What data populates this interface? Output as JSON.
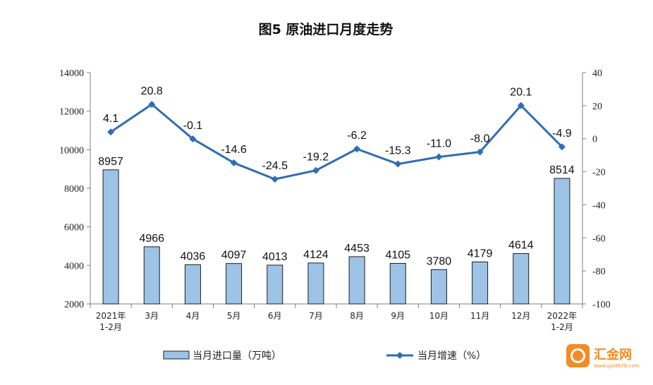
{
  "chart_data": {
    "type": "bar+line",
    "title": "图5  原油进口月度走势",
    "categories": [
      [
        "2021年",
        "1-2月"
      ],
      [
        "3月"
      ],
      [
        "4月"
      ],
      [
        "5月"
      ],
      [
        "6月"
      ],
      [
        "7月"
      ],
      [
        "8月"
      ],
      [
        "9月"
      ],
      [
        "10月"
      ],
      [
        "11月"
      ],
      [
        "12月"
      ],
      [
        "2022年",
        "1-2月"
      ]
    ],
    "bar_series": {
      "name": "当月进口量（万吨）",
      "values": [
        8957,
        4966,
        4036,
        4097,
        4013,
        4124,
        4453,
        4105,
        3780,
        4179,
        4614,
        8514
      ],
      "labels": [
        "8957",
        "4966",
        "4036",
        "4097",
        "4013",
        "4124",
        "4453",
        "4105",
        "3780",
        "4179",
        "4614",
        "8514"
      ],
      "color": "#9DC3E6",
      "border": "#1F1F1F"
    },
    "line_series": {
      "name": "当月增速（%）",
      "values": [
        4.1,
        20.8,
        -0.1,
        -14.6,
        -24.5,
        -19.2,
        -6.2,
        -15.3,
        -11.0,
        -8.0,
        20.1,
        -4.9
      ],
      "labels": [
        "4.1",
        "20.8",
        "-0.1",
        "-14.6",
        "-24.5",
        "-19.2",
        "-6.2",
        "-15.3",
        "-11.0",
        "-8.0",
        "20.1",
        "-4.9"
      ],
      "color": "#2E6DB4"
    },
    "y_left": {
      "min": 2000,
      "max": 14000,
      "ticks": [
        2000,
        4000,
        6000,
        8000,
        10000,
        12000,
        14000
      ]
    },
    "y_right": {
      "min": -100,
      "max": 40,
      "ticks": [
        40,
        20,
        0,
        -20,
        -40,
        -60,
        -80,
        -100
      ]
    },
    "legend": {
      "position": "bottom"
    },
    "grid": false
  },
  "watermark": {
    "text": "汇金网",
    "sub": "www.gold678.com",
    "color": "#F28C28"
  }
}
